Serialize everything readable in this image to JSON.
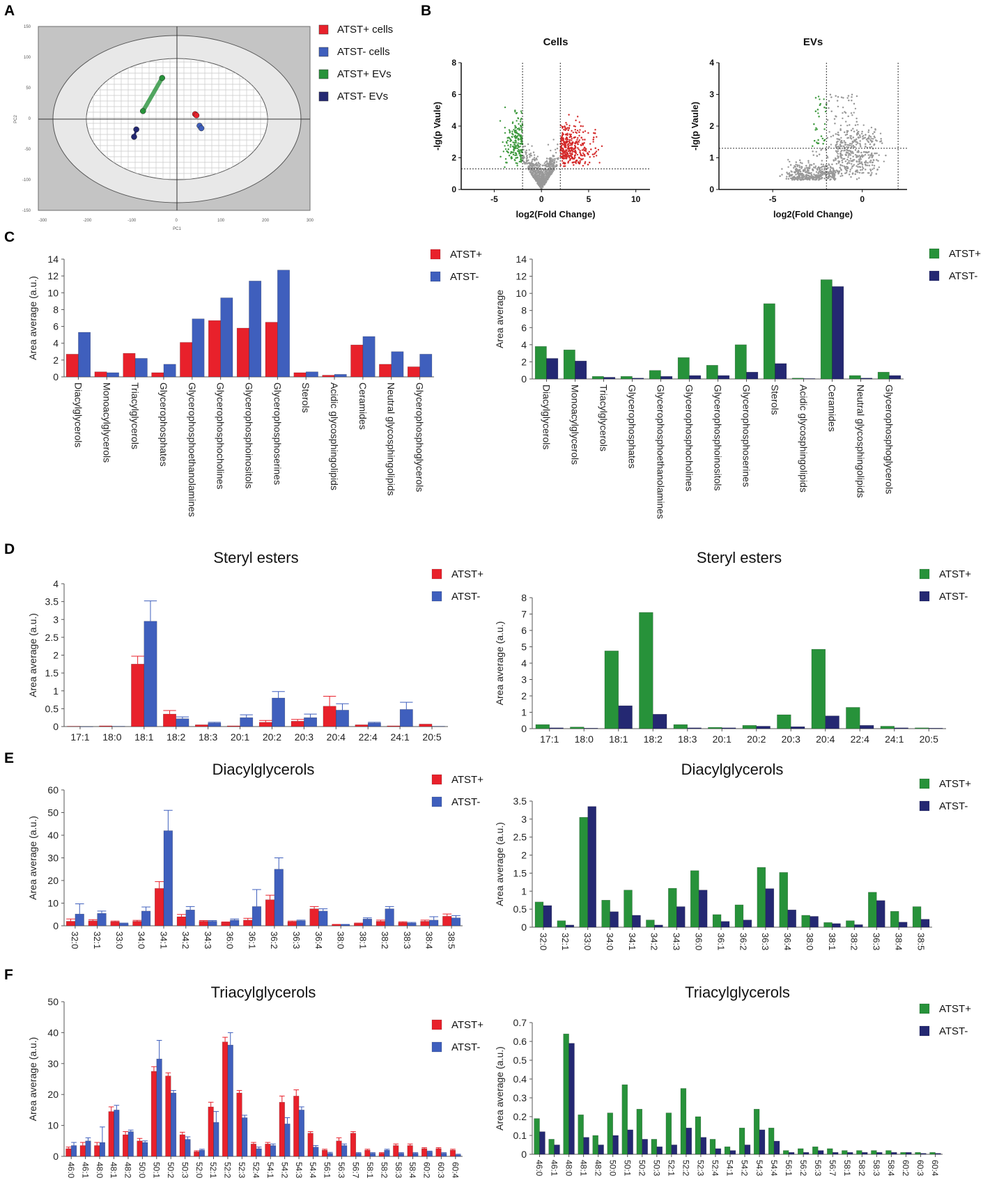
{
  "colors": {
    "red": "#e8212b",
    "blue": "#3f5fbd",
    "green": "#27923a",
    "navy": "#242872",
    "grey": "#8c8c8c",
    "volcano_red": "#d42a2a",
    "volcano_green": "#3f9a3f",
    "volcano_grey": "#999999"
  },
  "panel_labels": {
    "A": "A",
    "B": "B",
    "C": "C",
    "D": "D",
    "E": "E",
    "F": "F"
  },
  "chart_data": [
    {
      "id": "A",
      "type": "scatter",
      "title": "",
      "xlabel": "PC1",
      "ylabel": "PC2",
      "xlim": [
        -310,
        300
      ],
      "ylim": [
        -150,
        150
      ],
      "xticks": [
        -300,
        -200,
        -100,
        0,
        100,
        200,
        300
      ],
      "yticks": [
        150,
        100,
        50,
        0,
        -50,
        -100,
        -150
      ],
      "xtick_labels": [
        "-300",
        "-200",
        "-100",
        "0",
        "100",
        "200",
        "300"
      ],
      "ytick_labels": [
        "150",
        "100",
        "50",
        "0",
        "-50",
        "-100",
        "-150"
      ],
      "legend": [
        "ATST+ cells",
        "ATST- cells",
        "ATST+ EVs",
        "ATST- EVs"
      ],
      "series": [
        {
          "name": "ATST+ cells",
          "points": [
            [
              42,
              7
            ],
            [
              45,
              5
            ]
          ]
        },
        {
          "name": "ATST- cells",
          "points": [
            [
              52,
              -12
            ],
            [
              56,
              -16
            ]
          ]
        },
        {
          "name": "ATST+ EVs",
          "points": [
            [
              -75,
              12
            ],
            [
              -32,
              66
            ]
          ]
        },
        {
          "name": "ATST- EVs",
          "points": [
            [
              -90,
              -18
            ],
            [
              -95,
              -30
            ]
          ]
        }
      ]
    },
    {
      "id": "B1",
      "type": "scatter",
      "title": "Cells",
      "xlabel": "log2(Fold Change)",
      "ylabel": "-lg(p Vaule)",
      "xlim": [
        -8.5,
        11.5
      ],
      "ylim": [
        0,
        8
      ],
      "xticks": [
        -5,
        0,
        5,
        10
      ],
      "xtick_labels": [
        "-5",
        "0",
        "5",
        "10"
      ],
      "yticks": [
        0,
        2,
        4,
        6,
        8
      ],
      "ytick_labels": [
        "0",
        "2",
        "4",
        "6",
        "8"
      ],
      "thresholds": {
        "fc": [
          -2,
          2
        ],
        "p": 1.3
      }
    },
    {
      "id": "B2",
      "type": "scatter",
      "title": "EVs",
      "xlabel": "log2(Fold Change)",
      "ylabel": "-lg(p Vaule)",
      "xlim": [
        -8,
        2.5
      ],
      "ylim": [
        0,
        4
      ],
      "xticks": [
        -5,
        0
      ],
      "xtick_labels": [
        "-5",
        "0"
      ],
      "yticks": [
        0,
        1,
        2,
        3,
        4
      ],
      "ytick_labels": [
        "0",
        "1",
        "2",
        "3",
        "4"
      ],
      "thresholds": {
        "fc": [
          -2,
          2
        ],
        "p": 1.3
      }
    },
    {
      "id": "C1",
      "type": "bar",
      "title": "",
      "ylabel": "Area average (a.u.)",
      "ylim": [
        0,
        14
      ],
      "yticks": [
        0,
        2,
        4,
        6,
        8,
        10,
        12,
        14
      ],
      "ytick_labels": [
        "0",
        "2",
        "4",
        "6",
        "8",
        "10",
        "12",
        "14"
      ],
      "categories": [
        "Diacylglycerols",
        "Monoacylglycerols",
        "Triacylglycerols",
        "Glycerophosphates",
        "Glycerophosphoethanolamines",
        "Glycerophosphocholines",
        "Glycerophosphoinositols",
        "Glycerophosphoserines",
        "Sterols",
        "Acidic glycosphingolipids",
        "Ceramides",
        "Neutral glycosphingolipids",
        "Glycerophosphoglycerols"
      ],
      "series": [
        {
          "name": "ATST+",
          "values": [
            2.7,
            0.6,
            2.8,
            0.5,
            4.1,
            6.7,
            5.8,
            6.5,
            0.5,
            0.2,
            3.8,
            1.5,
            1.2
          ]
        },
        {
          "name": "ATST-",
          "values": [
            5.3,
            0.5,
            2.2,
            1.5,
            6.9,
            9.4,
            11.4,
            12.7,
            0.6,
            0.3,
            4.8,
            3.0,
            2.7
          ]
        }
      ]
    },
    {
      "id": "C2",
      "type": "bar",
      "title": "",
      "ylabel": "Area average",
      "ylim": [
        0,
        14
      ],
      "yticks": [
        0,
        2,
        4,
        6,
        8,
        10,
        12,
        14
      ],
      "ytick_labels": [
        "0",
        "2",
        "4",
        "6",
        "8",
        "10",
        "12",
        "14"
      ],
      "categories": [
        "Diacylglycerols",
        "Monoacylglycerols",
        "Triacylglycerols",
        "Glycerophosphates",
        "Glycerophosphoethanolamines",
        "Glycerophosphocholines",
        "Glycerophosphoinositols",
        "Glycerophosphoserines",
        "Sterols",
        "Acidic glycosphingolipids",
        "Ceramides",
        "Neutral glycosphingolipids",
        "Glycerophosphoglycerols"
      ],
      "series": [
        {
          "name": "ATST+",
          "values": [
            3.8,
            3.4,
            0.3,
            0.3,
            1.0,
            2.5,
            1.6,
            4.0,
            8.8,
            0.1,
            11.6,
            0.4,
            0.8
          ]
        },
        {
          "name": "ATST-",
          "values": [
            2.4,
            2.1,
            0.2,
            0.1,
            0.3,
            0.4,
            0.4,
            0.8,
            1.8,
            0.05,
            10.8,
            0.1,
            0.4
          ]
        }
      ]
    },
    {
      "id": "D1",
      "type": "bar",
      "title": "Steryl esters",
      "ylabel": "Area average (a.u.)",
      "ylim": [
        0,
        4
      ],
      "yticks": [
        0,
        0.5,
        1,
        1.5,
        2,
        2.5,
        3,
        3.5,
        4
      ],
      "ytick_labels": [
        "0",
        "0.5",
        "1",
        "1.5",
        "2",
        "2.5",
        "3",
        "3.5",
        "4"
      ],
      "categories": [
        "17:1",
        "18:0",
        "18:1",
        "18:2",
        "18:3",
        "20:1",
        "20:2",
        "20:3",
        "20:4",
        "22:4",
        "24:1",
        "20:5"
      ],
      "series": [
        {
          "name": "ATST+",
          "values": [
            0.01,
            0.02,
            1.75,
            0.35,
            0.05,
            0.02,
            0.12,
            0.15,
            0.57,
            0.05,
            0.02,
            0.07
          ],
          "errors": [
            0,
            0,
            0.22,
            0.1,
            0,
            0,
            0.05,
            0.05,
            0.28,
            0,
            0,
            0
          ]
        },
        {
          "name": "ATST-",
          "values": [
            0.0,
            0.01,
            2.95,
            0.22,
            0.1,
            0.25,
            0.8,
            0.25,
            0.46,
            0.1,
            0.48,
            0.01
          ],
          "errors": [
            0,
            0,
            0.57,
            0.05,
            0.02,
            0.08,
            0.18,
            0.1,
            0.18,
            0.02,
            0.2,
            0
          ]
        }
      ]
    },
    {
      "id": "D2",
      "type": "bar",
      "title": "Steryl esters",
      "ylabel": "Area average (a.u.)",
      "ylim": [
        0,
        8
      ],
      "yticks": [
        0,
        1,
        2,
        3,
        4,
        5,
        6,
        7,
        8
      ],
      "ytick_labels": [
        "0",
        "1",
        "2",
        "3",
        "4",
        "5",
        "6",
        "7",
        "8"
      ],
      "categories": [
        "17:1",
        "18:0",
        "18:1",
        "18:2",
        "18:3",
        "20:1",
        "20:2",
        "20:3",
        "20:4",
        "22:4",
        "24:1",
        "20:5"
      ],
      "series": [
        {
          "name": "ATST+",
          "values": [
            0.25,
            0.1,
            4.75,
            7.1,
            0.25,
            0.08,
            0.2,
            0.85,
            4.85,
            1.3,
            0.15,
            0.05
          ]
        },
        {
          "name": "ATST-",
          "values": [
            0.05,
            0.03,
            1.4,
            0.88,
            0.05,
            0.05,
            0.15,
            0.12,
            0.78,
            0.2,
            0.05,
            0.03
          ]
        }
      ]
    },
    {
      "id": "E1",
      "type": "bar",
      "title": "Diacylglycerols",
      "ylabel": "Area average (a.u.)",
      "ylim": [
        0,
        60
      ],
      "yticks": [
        0,
        10,
        20,
        30,
        40,
        50,
        60
      ],
      "ytick_labels": [
        "0",
        "10",
        "20",
        "30",
        "40",
        "50",
        "60"
      ],
      "categories": [
        "32:0",
        "32:1",
        "33:0",
        "34:0",
        "34:1",
        "34:2",
        "34:3",
        "36:0",
        "36:1",
        "36:2",
        "36:3",
        "36:4",
        "38:0",
        "38:1",
        "38:2",
        "38:3",
        "38:4",
        "38:5"
      ],
      "series": [
        {
          "name": "ATST+",
          "values": [
            2.0,
            2.2,
            1.8,
            2.0,
            16.5,
            4.0,
            2.0,
            1.5,
            2.5,
            11.5,
            1.8,
            7.5,
            0.5,
            1.0,
            2.0,
            1.5,
            2.0,
            4.2
          ],
          "errors": [
            1.0,
            0.5,
            0.3,
            0.4,
            3.0,
            1.0,
            0.3,
            0.2,
            0.8,
            2.0,
            0.3,
            1.0,
            0.1,
            0.2,
            0.5,
            0.3,
            0.5,
            1.0
          ]
        },
        {
          "name": "ATST-",
          "values": [
            5.2,
            5.5,
            1.0,
            6.5,
            42.0,
            7.0,
            2.0,
            2.5,
            8.5,
            25.0,
            2.2,
            6.5,
            0.5,
            3.0,
            7.5,
            1.2,
            2.5,
            3.5
          ],
          "errors": [
            4.5,
            1.0,
            0.2,
            1.8,
            9.0,
            1.5,
            0.3,
            0.5,
            7.5,
            5.0,
            0.3,
            1.0,
            0.1,
            0.5,
            1.0,
            0.3,
            1.5,
            1.0
          ]
        }
      ]
    },
    {
      "id": "E2",
      "type": "bar",
      "title": "Diacylglycerols",
      "ylabel": "Area average (a.u.)",
      "ylim": [
        0,
        3.5
      ],
      "yticks": [
        0,
        0.5,
        1,
        1.5,
        2,
        2.5,
        3,
        3.5
      ],
      "ytick_labels": [
        "0",
        "0.5",
        "1",
        "1.5",
        "2",
        "2.5",
        "3",
        "3.5"
      ],
      "categories": [
        "32:0",
        "32:1",
        "33:0",
        "34:0",
        "34:1",
        "34:2",
        "34:3",
        "36:0",
        "36:1",
        "36:2",
        "36:3",
        "36:4",
        "38:0",
        "38:1",
        "38:2",
        "36:3",
        "38:4",
        "38:5"
      ],
      "series": [
        {
          "name": "ATST+",
          "values": [
            0.7,
            0.18,
            3.05,
            0.75,
            1.03,
            0.2,
            1.08,
            1.57,
            0.35,
            0.62,
            1.66,
            1.52,
            0.33,
            0.13,
            0.18,
            0.97,
            0.44,
            0.57
          ]
        },
        {
          "name": "ATST-",
          "values": [
            0.6,
            0.06,
            3.35,
            0.43,
            0.33,
            0.06,
            0.57,
            1.03,
            0.16,
            0.2,
            1.07,
            0.48,
            0.3,
            0.1,
            0.07,
            0.74,
            0.14,
            0.22
          ]
        }
      ]
    },
    {
      "id": "F1",
      "type": "bar",
      "title": "Triacylglycerols",
      "ylabel": "Area average (a.u.)",
      "ylim": [
        0,
        50
      ],
      "yticks": [
        0,
        10,
        20,
        30,
        40,
        50
      ],
      "ytick_labels": [
        "0",
        "10",
        "20",
        "30",
        "40",
        "50"
      ],
      "categories": [
        "46:0",
        "46:1",
        "48:0",
        "48:1",
        "48:2",
        "50:0",
        "50:1",
        "50:2",
        "50:3",
        "52:0",
        "52:1",
        "52:2",
        "52:3",
        "52:4",
        "54:1",
        "54:2",
        "54:3",
        "54:4",
        "56:1",
        "56:3",
        "56:7",
        "58:1",
        "58:2",
        "58:3",
        "58:4",
        "60:2",
        "60:3",
        "60:4"
      ],
      "series": [
        {
          "name": "ATST+",
          "values": [
            2.5,
            3.5,
            3.5,
            14.5,
            7.0,
            5.0,
            27.5,
            26.0,
            7.0,
            1.5,
            16.0,
            37.0,
            20.5,
            4.0,
            4.0,
            17.5,
            19.5,
            7.5,
            2.0,
            5.0,
            7.5,
            2.0,
            1.0,
            3.5,
            3.5,
            2.5,
            2.5,
            2.0
          ],
          "errors": [
            0.5,
            1.0,
            1.0,
            1.5,
            1.0,
            0.8,
            1.5,
            1.0,
            0.8,
            0.3,
            1.5,
            1.5,
            0.8,
            0.5,
            0.5,
            2.0,
            2.0,
            0.5,
            0.3,
            1.0,
            0.5,
            0.3,
            0.2,
            0.5,
            0.5,
            0.3,
            0.3,
            0.3
          ]
        },
        {
          "name": "ATST-",
          "values": [
            3.5,
            5.0,
            4.5,
            15.0,
            8.0,
            4.5,
            31.5,
            20.5,
            5.5,
            2.0,
            11.0,
            36.0,
            12.5,
            2.5,
            3.5,
            10.5,
            15.0,
            3.0,
            1.0,
            3.5,
            1.0,
            1.0,
            2.0,
            1.0,
            1.0,
            1.5,
            1.0,
            0.5
          ],
          "errors": [
            1.0,
            1.0,
            5.0,
            1.5,
            0.5,
            0.5,
            6.0,
            0.8,
            0.8,
            0.3,
            3.5,
            4.0,
            0.8,
            0.5,
            0.5,
            2.0,
            1.0,
            0.5,
            0.3,
            0.5,
            0.2,
            0.2,
            0.3,
            0.2,
            0.2,
            0.2,
            0.2,
            0.2
          ]
        }
      ]
    },
    {
      "id": "F2",
      "type": "bar",
      "title": "Triacylglycerols",
      "ylabel": "Area average (a.u.)",
      "ylim": [
        0,
        0.7
      ],
      "yticks": [
        0,
        0.1,
        0.2,
        0.3,
        0.4,
        0.5,
        0.6,
        0.7
      ],
      "ytick_labels": [
        "0",
        "0.1",
        "0.2",
        "0.3",
        "0.4",
        "0.5",
        "0.6",
        "0.7"
      ],
      "categories": [
        "46:0",
        "46:1",
        "48:0",
        "48:1",
        "48:2",
        "50:0",
        "50:1",
        "50:2",
        "50:3",
        "52:1",
        "52:2",
        "52:3",
        "52:4",
        "54:1",
        "54:2",
        "54:3",
        "54:4",
        "56:1",
        "56:2",
        "56:3",
        "56:7",
        "58:1",
        "58:2",
        "58:3",
        "58:4",
        "60:2",
        "60:3",
        "60:4"
      ],
      "series": [
        {
          "name": "ATST+",
          "values": [
            0.19,
            0.08,
            0.64,
            0.21,
            0.1,
            0.22,
            0.37,
            0.24,
            0.08,
            0.22,
            0.35,
            0.2,
            0.08,
            0.04,
            0.14,
            0.24,
            0.14,
            0.02,
            0.03,
            0.04,
            0.03,
            0.02,
            0.02,
            0.02,
            0.02,
            0.01,
            0.01,
            0.01
          ]
        },
        {
          "name": "ATST-",
          "values": [
            0.12,
            0.05,
            0.59,
            0.09,
            0.05,
            0.1,
            0.13,
            0.08,
            0.04,
            0.05,
            0.14,
            0.09,
            0.03,
            0.02,
            0.05,
            0.13,
            0.07,
            0.01,
            0.01,
            0.02,
            0.01,
            0.01,
            0.01,
            0.01,
            0.01,
            0.01,
            0.005,
            0.005
          ]
        }
      ]
    }
  ]
}
